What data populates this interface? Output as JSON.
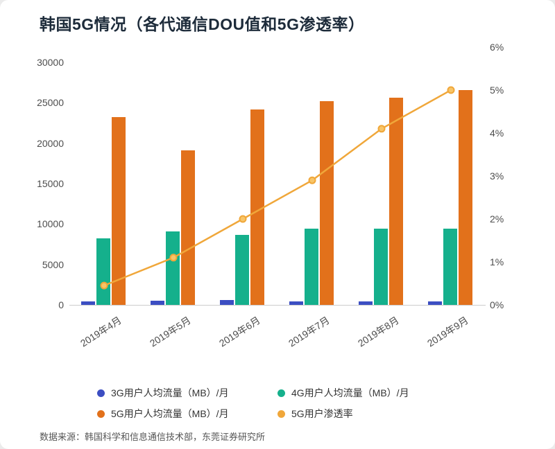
{
  "title": "韩国5G情况（各代通信DOU值和5G渗透率）",
  "source": "数据来源：韩国科学和信息通信技术部，东莞证券研究所",
  "chart_data": {
    "type": "bar",
    "subtype": "grouped bars with overlaid line on secondary percent axis",
    "title": "韩国5G情况（各代通信DOU值和5G渗透率）",
    "categories": [
      "2019年4月",
      "2019年5月",
      "2019年6月",
      "2019年7月",
      "2019年8月",
      "2019年9月"
    ],
    "bar_series": [
      {
        "name": "3G用户人均流量（MB）/月",
        "color": "#3c4ec2",
        "values": [
          400,
          550,
          600,
          400,
          400,
          450
        ]
      },
      {
        "name": "4G用户人均流量（MB）/月",
        "color": "#15b08c",
        "values": [
          8200,
          9100,
          8700,
          9400,
          9400,
          9400
        ]
      },
      {
        "name": "5G用户人均流量（MB）/月",
        "color": "#e2711b",
        "values": [
          23200,
          19100,
          24200,
          25200,
          25600,
          26600
        ]
      }
    ],
    "line_series": {
      "name": "5G用户渗透率",
      "color": "#f0a73a",
      "marker_fill": "#f8c568",
      "values_percent": [
        0.45,
        1.1,
        2.0,
        2.9,
        4.1,
        5.0
      ]
    },
    "left_axis": {
      "ticks": [
        0,
        5000,
        10000,
        15000,
        20000,
        25000,
        30000
      ],
      "max": 30000,
      "label": ""
    },
    "right_axis": {
      "ticks": [
        "0%",
        "1%",
        "2%",
        "3%",
        "4%",
        "5%",
        "6%"
      ],
      "max_percent": 6,
      "label": ""
    },
    "legend_position": "bottom",
    "grid": false
  }
}
